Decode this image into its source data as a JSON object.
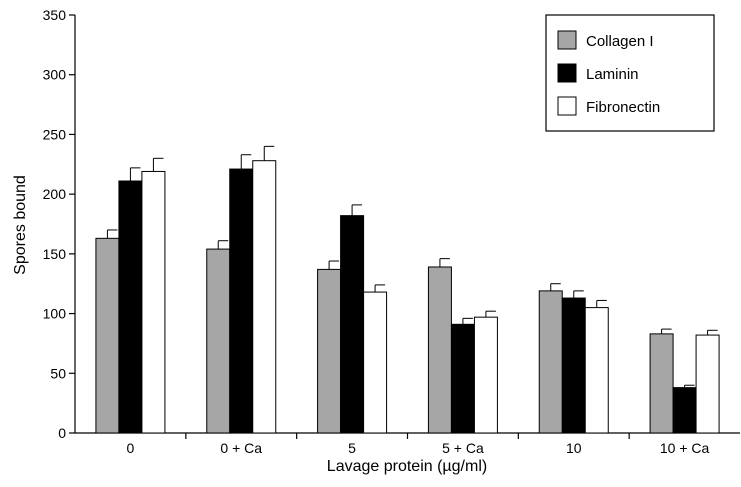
{
  "chart_data": {
    "type": "bar",
    "xlabel": "Lavage protein (µg/ml)",
    "ylabel": "Spores bound",
    "ylim": [
      0,
      350
    ],
    "yticks": [
      0,
      50,
      100,
      150,
      200,
      250,
      300,
      350
    ],
    "ytick_labels": [
      "0",
      "50",
      "100",
      "150",
      "200",
      "250",
      "300",
      "350"
    ],
    "categories": [
      "0",
      "0 + Ca",
      "5",
      "5 + Ca",
      "10",
      "10 + Ca"
    ],
    "legend_position": "top-right",
    "series": [
      {
        "name": "Collagen I",
        "color": "#a6a6a6",
        "values": [
          163,
          154,
          137,
          139,
          119,
          83
        ],
        "errors": [
          7,
          7,
          7,
          7,
          6,
          4
        ]
      },
      {
        "name": "Laminin",
        "color": "#000000",
        "values": [
          211,
          221,
          182,
          91,
          113,
          38
        ],
        "errors": [
          11,
          12,
          9,
          5,
          6,
          2
        ]
      },
      {
        "name": "Fibronectin",
        "color": "#ffffff",
        "values": [
          219,
          228,
          118,
          97,
          105,
          82
        ],
        "errors": [
          11,
          12,
          6,
          5,
          6,
          4
        ]
      }
    ]
  }
}
